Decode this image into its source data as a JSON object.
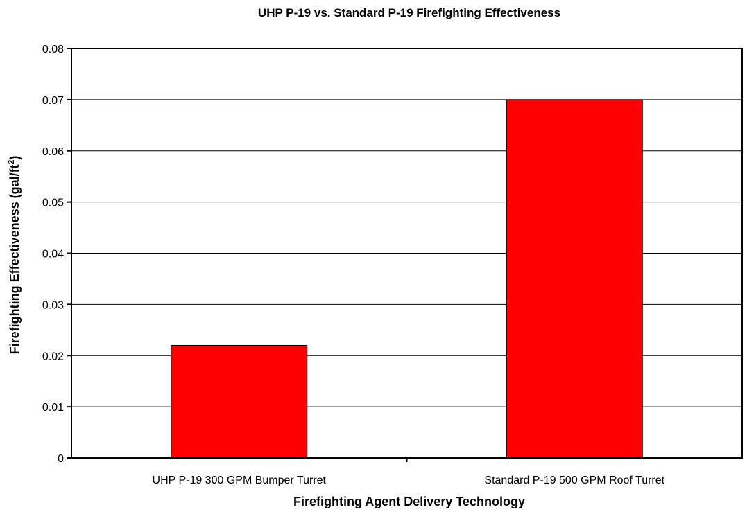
{
  "chart_data": {
    "type": "bar",
    "title": "UHP P-19 vs. Standard P-19 Firefighting Effectiveness",
    "xlabel": "Firefighting Agent Delivery Technology",
    "ylabel": {
      "text": "Firefighting Effectiveness (gal/ft",
      "superscript": "2",
      "suffix": ")"
    },
    "categories": [
      "UHP P-19 300 GPM Bumper Turret",
      "Standard P-19 500 GPM Roof Turret"
    ],
    "values": [
      0.022,
      0.07
    ],
    "ylim": [
      0,
      0.08
    ],
    "yticks": [
      "0",
      "0.01",
      "0.02",
      "0.03",
      "0.04",
      "0.05",
      "0.06",
      "0.07",
      "0.08"
    ],
    "grid": true,
    "legend": "none",
    "colors": {
      "bar": "#ff0000",
      "bar_stroke": "#000000",
      "grid": "#000000",
      "axis": "#000000"
    }
  }
}
